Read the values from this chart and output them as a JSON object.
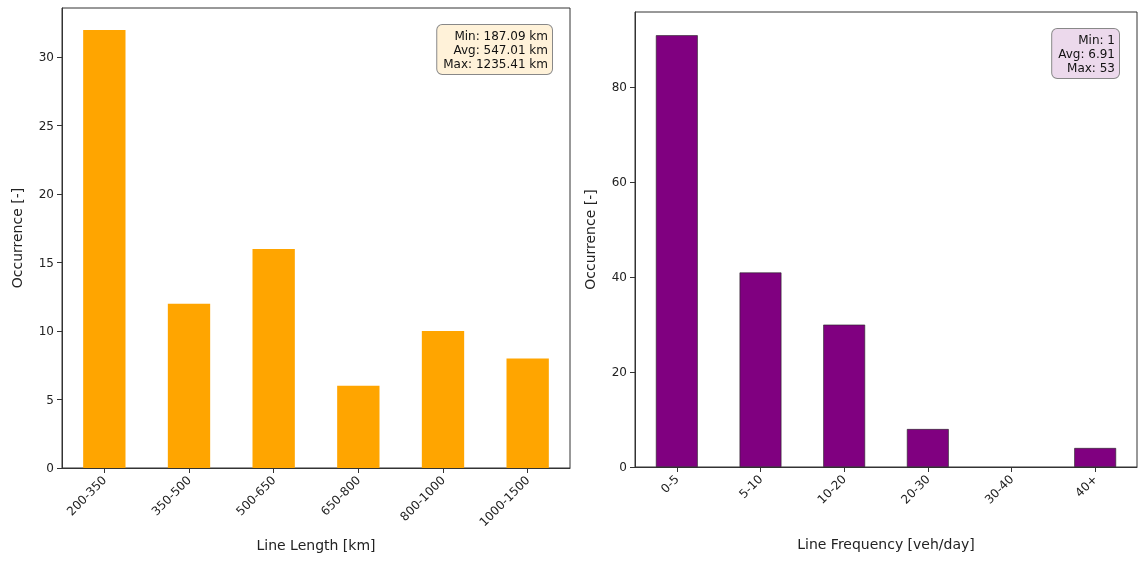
{
  "chart_data": [
    {
      "type": "bar",
      "xlabel": "Line Length [km]",
      "ylabel": "Occurrence [-]",
      "categories": [
        "200-350",
        "350-500",
        "500-650",
        "650-800",
        "800-1000",
        "1000-1500"
      ],
      "values": [
        32,
        12,
        16,
        6,
        10,
        8
      ],
      "color": "#ffa500",
      "ylim": [
        0,
        33.6
      ],
      "yticks": [
        0,
        5,
        10,
        15,
        20,
        25,
        30
      ],
      "grid": false,
      "annotations": [
        "Min: 187.09 km",
        "Avg: 547.01 km",
        "Max: 1235.41 km"
      ]
    },
    {
      "type": "bar",
      "xlabel": "Line Frequency [veh/day]",
      "ylabel": "Occurrence [-]",
      "categories": [
        "0-5",
        "5-10",
        "10-20",
        "20-30",
        "30-40",
        "40+"
      ],
      "values": [
        91,
        41,
        30,
        8,
        0,
        4
      ],
      "color": "#800080",
      "ylim": [
        0,
        95.9
      ],
      "yticks": [
        0,
        20,
        40,
        60,
        80
      ],
      "grid": false,
      "annotations": [
        "Min: 1",
        "Avg: 6.91",
        "Max: 53"
      ]
    }
  ]
}
